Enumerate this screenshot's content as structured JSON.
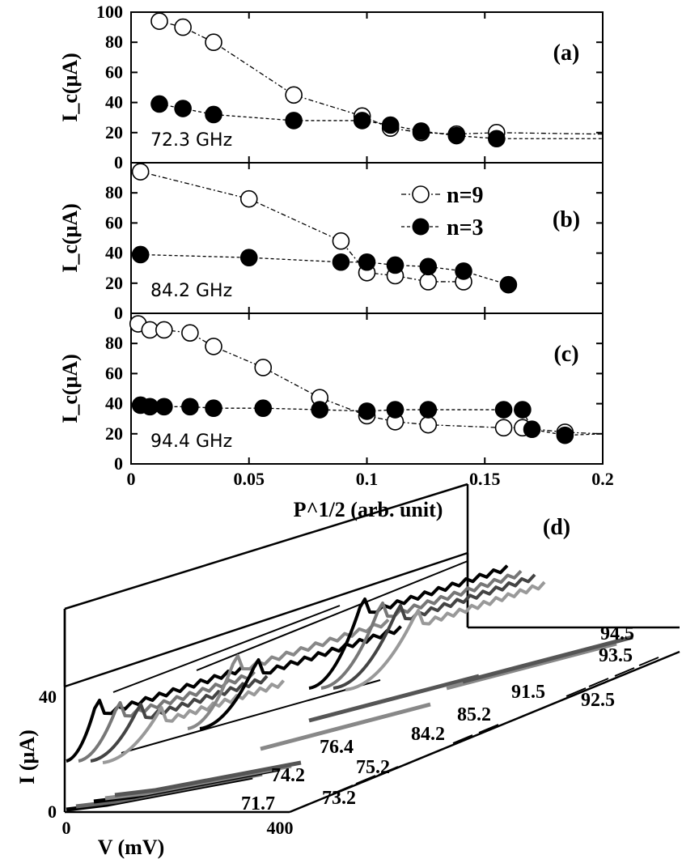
{
  "chart_data": [
    {
      "type": "scatter",
      "panel": "(a)",
      "annotation": "72.3 GHz",
      "ylabel": "I_c(μA)",
      "xlabel": "",
      "xlim": [
        0,
        0.2
      ],
      "ylim": [
        0,
        100
      ],
      "yticks": [
        "0",
        "20",
        "40",
        "60",
        "80",
        "100"
      ],
      "series": [
        {
          "name": "n=9",
          "marker": "open-circle",
          "x": [
            0.012,
            0.022,
            0.035,
            0.069,
            0.098,
            0.11,
            0.123,
            0.138,
            0.155
          ],
          "y": [
            94,
            90,
            80,
            45,
            31,
            23,
            20,
            19,
            20
          ]
        },
        {
          "name": "n=3",
          "marker": "filled-circle",
          "x": [
            0.012,
            0.022,
            0.035,
            0.069,
            0.098,
            0.11,
            0.123,
            0.138,
            0.155
          ],
          "y": [
            39,
            36,
            32,
            28,
            28,
            25,
            21,
            18,
            16
          ]
        }
      ],
      "tail": {
        "x_end": 0.2,
        "y_end": [
          19,
          16
        ]
      }
    },
    {
      "type": "scatter",
      "panel": "(b)",
      "annotation": "84.2 GHz",
      "ylabel": "I_c(μA)",
      "xlabel": "",
      "xlim": [
        0,
        0.2
      ],
      "ylim": [
        0,
        100
      ],
      "yticks": [
        "0",
        "20",
        "40",
        "60",
        "80"
      ],
      "series": [
        {
          "name": "n=9",
          "marker": "open-circle",
          "x": [
            0.004,
            0.05,
            0.089,
            0.1,
            0.112,
            0.126,
            0.141
          ],
          "y": [
            94,
            76,
            48,
            27,
            25,
            21,
            21
          ]
        },
        {
          "name": "n=3",
          "marker": "filled-circle",
          "x": [
            0.004,
            0.05,
            0.089,
            0.1,
            0.112,
            0.126,
            0.141,
            0.16
          ],
          "y": [
            39,
            37,
            34,
            34,
            32,
            31,
            28,
            19
          ]
        }
      ]
    },
    {
      "type": "scatter",
      "panel": "(c)",
      "annotation": "94.4 GHz",
      "ylabel": "I_c(μA)",
      "xlabel": "P^1/2 (arb. unit)",
      "xlim": [
        0,
        0.2
      ],
      "ylim": [
        0,
        100
      ],
      "xticks": [
        "0",
        "0.05",
        "0.1",
        "0.15",
        "0.2"
      ],
      "yticks": [
        "0",
        "20",
        "40",
        "60",
        "80"
      ],
      "series": [
        {
          "name": "n=9",
          "marker": "open-circle",
          "x": [
            0.003,
            0.008,
            0.014,
            0.025,
            0.035,
            0.056,
            0.08,
            0.1,
            0.112,
            0.126,
            0.158,
            0.166,
            0.184
          ],
          "y": [
            93,
            89,
            89,
            87,
            78,
            64,
            44,
            32,
            28,
            26,
            24,
            24,
            21
          ]
        },
        {
          "name": "n=3",
          "marker": "filled-circle",
          "x": [
            0.004,
            0.008,
            0.014,
            0.025,
            0.035,
            0.056,
            0.08,
            0.1,
            0.112,
            0.126,
            0.158,
            0.166,
            0.17,
            0.184
          ],
          "y": [
            39,
            38,
            38,
            38,
            37,
            37,
            36,
            35,
            36,
            36,
            36,
            36,
            23,
            19
          ]
        }
      ],
      "tail": {
        "x_end": 0.2,
        "y_end": [
          20,
          20
        ]
      }
    },
    {
      "type": "line",
      "panel": "(d)",
      "style": "3d-waterfall",
      "xlabel": "V (mV)",
      "ylabel": "I (μA)",
      "xticks": [
        "0",
        "400"
      ],
      "yticks": [
        "0",
        "40"
      ],
      "xlim": [
        0,
        400
      ],
      "ylim": [
        0,
        40
      ],
      "depth_labels": [
        "71.7",
        "73.2",
        "74.2",
        "75.2",
        "76.4",
        "84.2",
        "85.2",
        "91.5",
        "92.5",
        "93.5",
        "94.5"
      ]
    }
  ],
  "legend": {
    "n9": "n=9",
    "n3": "n=3"
  }
}
